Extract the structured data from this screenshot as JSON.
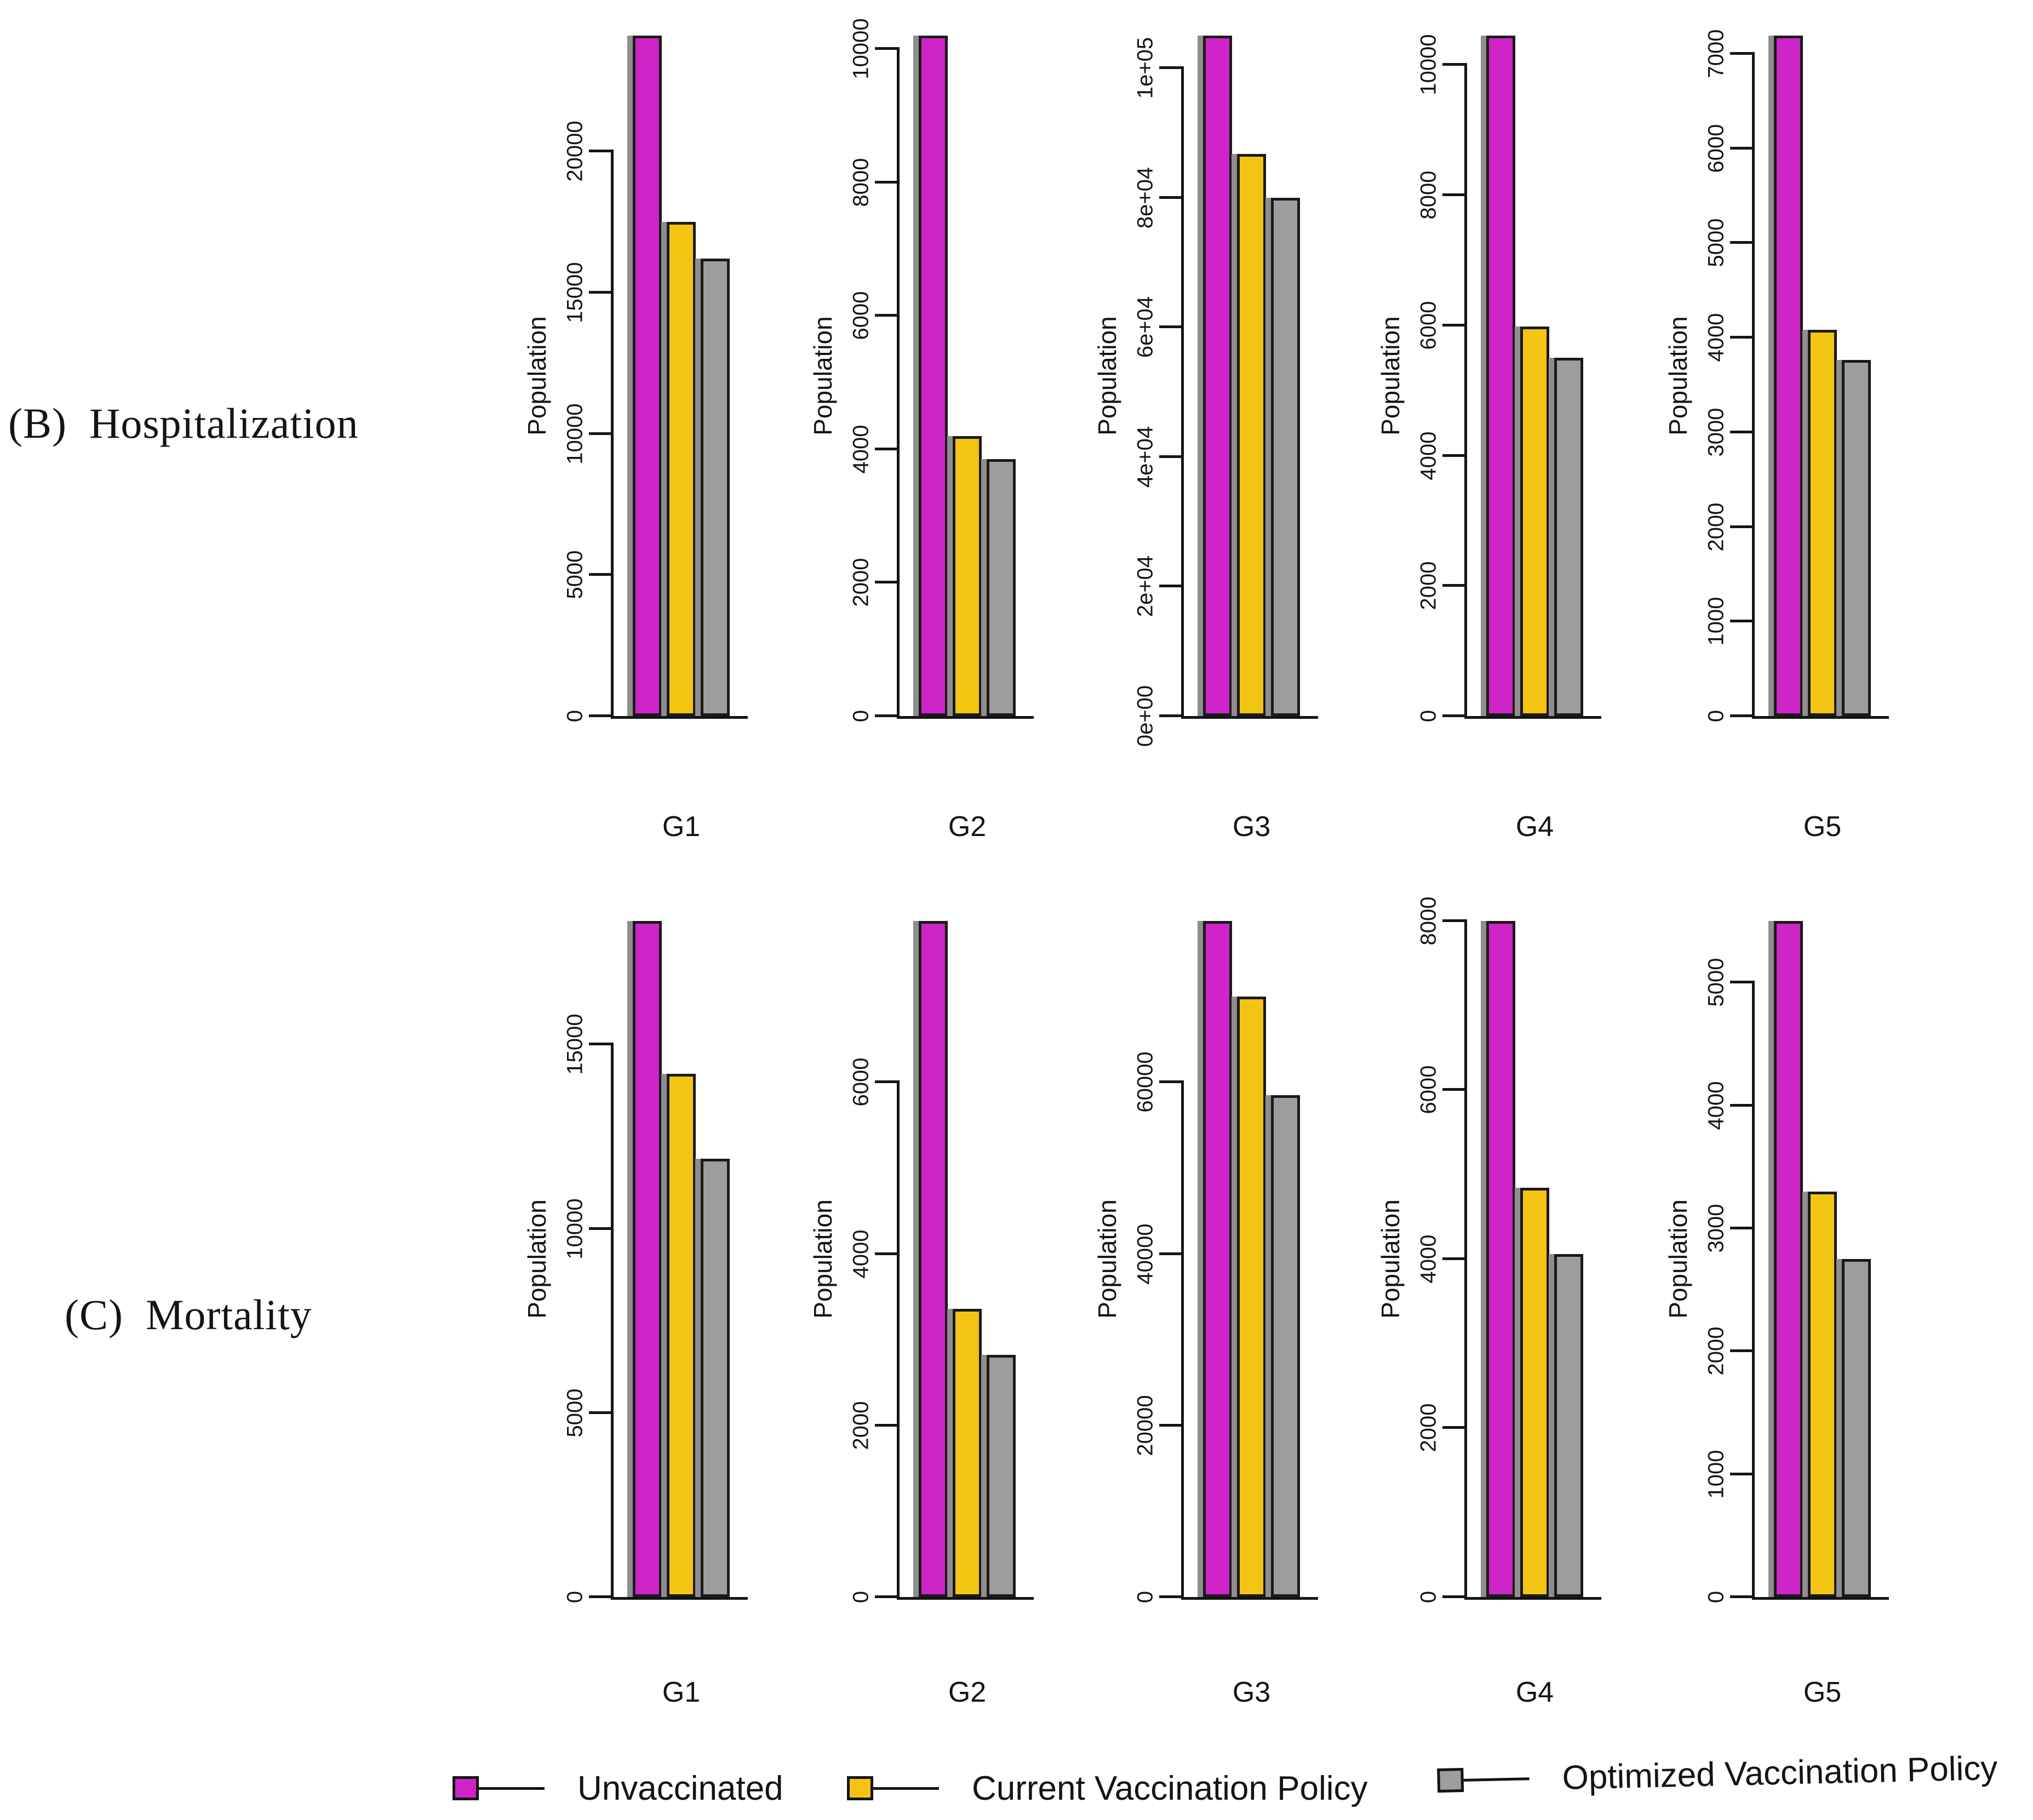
{
  "figure": {
    "row_labels": [
      {
        "prefix": "(B)",
        "title": "Hospitalization"
      },
      {
        "prefix": "(C)",
        "title": "Mortality"
      }
    ],
    "y_axis_title": "Population",
    "colors": {
      "unvaccinated": "#CE24C8",
      "current_policy": "#F4C413",
      "optimized_policy": "#9D9D9D",
      "bar_border": "#1a1a1a",
      "bar_shadow": "#8e8e8e",
      "axis": "#141414"
    },
    "legend": {
      "items": [
        {
          "label": "Unvaccinated",
          "color_key": "unvaccinated"
        },
        {
          "label": "Current Vaccination Policy",
          "color_key": "current_policy"
        },
        {
          "label": "Optimized Vaccination Policy",
          "color_key": "optimized_policy"
        }
      ]
    }
  },
  "chart_data": [
    {
      "type": "bar",
      "row": "B",
      "row_title": "Hospitalization",
      "category": "G1",
      "ylabel": "Population",
      "series": [
        "Unvaccinated",
        "Current Vaccination Policy",
        "Optimized Vaccination Policy"
      ],
      "values": [
        24100,
        17500,
        16200
      ],
      "first_bar_clipped_at_top": true,
      "ylim": [
        0,
        24100
      ],
      "yticks": [
        {
          "value": 0,
          "label": "0"
        },
        {
          "value": 5000,
          "label": "5000"
        },
        {
          "value": 10000,
          "label": "10000"
        },
        {
          "value": 15000,
          "label": "15000"
        },
        {
          "value": 20000,
          "label": "20000"
        }
      ]
    },
    {
      "type": "bar",
      "row": "B",
      "row_title": "Hospitalization",
      "category": "G2",
      "ylabel": "Population",
      "series": [
        "Unvaccinated",
        "Current Vaccination Policy",
        "Optimized Vaccination Policy"
      ],
      "values": [
        10200,
        4200,
        3850
      ],
      "first_bar_clipped_at_top": true,
      "ylim": [
        0,
        10200
      ],
      "yticks": [
        {
          "value": 0,
          "label": "0"
        },
        {
          "value": 2000,
          "label": "2000"
        },
        {
          "value": 4000,
          "label": "4000"
        },
        {
          "value": 6000,
          "label": "6000"
        },
        {
          "value": 8000,
          "label": "8000"
        },
        {
          "value": 10000,
          "label": "10000"
        }
      ]
    },
    {
      "type": "bar",
      "row": "B",
      "row_title": "Hospitalization",
      "category": "G3",
      "ylabel": "Population",
      "series": [
        "Unvaccinated",
        "Current Vaccination Policy",
        "Optimized Vaccination Policy"
      ],
      "values": [
        105000,
        86700,
        80000
      ],
      "first_bar_clipped_at_top": true,
      "ylim": [
        0,
        105000
      ],
      "yticks": [
        {
          "value": 0,
          "label": "0e+00"
        },
        {
          "value": 20000,
          "label": "2e+04"
        },
        {
          "value": 40000,
          "label": "4e+04"
        },
        {
          "value": 60000,
          "label": "6e+04"
        },
        {
          "value": 80000,
          "label": "8e+04"
        },
        {
          "value": 100000,
          "label": "1e+05"
        }
      ]
    },
    {
      "type": "bar",
      "row": "B",
      "row_title": "Hospitalization",
      "category": "G4",
      "ylabel": "Population",
      "series": [
        "Unvaccinated",
        "Current Vaccination Policy",
        "Optimized Vaccination Policy"
      ],
      "values": [
        10450,
        5980,
        5500
      ],
      "first_bar_clipped_at_top": true,
      "ylim": [
        0,
        10450
      ],
      "yticks": [
        {
          "value": 0,
          "label": "0"
        },
        {
          "value": 2000,
          "label": "2000"
        },
        {
          "value": 4000,
          "label": "4000"
        },
        {
          "value": 6000,
          "label": "6000"
        },
        {
          "value": 8000,
          "label": "8000"
        },
        {
          "value": 10000,
          "label": "10000"
        }
      ]
    },
    {
      "type": "bar",
      "row": "B",
      "row_title": "Hospitalization",
      "category": "G5",
      "ylabel": "Population",
      "series": [
        "Unvaccinated",
        "Current Vaccination Policy",
        "Optimized Vaccination Policy"
      ],
      "values": [
        7190,
        4080,
        3760
      ],
      "first_bar_clipped_at_top": true,
      "ylim": [
        0,
        7190
      ],
      "yticks": [
        {
          "value": 0,
          "label": "0"
        },
        {
          "value": 1000,
          "label": "1000"
        },
        {
          "value": 2000,
          "label": "2000"
        },
        {
          "value": 3000,
          "label": "3000"
        },
        {
          "value": 4000,
          "label": "4000"
        },
        {
          "value": 5000,
          "label": "5000"
        },
        {
          "value": 6000,
          "label": "6000"
        },
        {
          "value": 7000,
          "label": "7000"
        }
      ]
    },
    {
      "type": "bar",
      "row": "C",
      "row_title": "Mortality",
      "category": "G1",
      "ylabel": "Population",
      "series": [
        "Unvaccinated",
        "Current Vaccination Policy",
        "Optimized Vaccination Policy"
      ],
      "values": [
        18350,
        14200,
        11900
      ],
      "first_bar_clipped_at_top": true,
      "ylim": [
        0,
        18350
      ],
      "yticks": [
        {
          "value": 0,
          "label": "0"
        },
        {
          "value": 5000,
          "label": "5000"
        },
        {
          "value": 10000,
          "label": "10000"
        },
        {
          "value": 15000,
          "label": "15000"
        }
      ]
    },
    {
      "type": "bar",
      "row": "C",
      "row_title": "Mortality",
      "category": "G2",
      "ylabel": "Population",
      "series": [
        "Unvaccinated",
        "Current Vaccination Policy",
        "Optimized Vaccination Policy"
      ],
      "values": [
        7880,
        3360,
        2820
      ],
      "first_bar_clipped_at_top": true,
      "ylim": [
        0,
        7880
      ],
      "yticks": [
        {
          "value": 0,
          "label": "0"
        },
        {
          "value": 2000,
          "label": "2000"
        },
        {
          "value": 4000,
          "label": "4000"
        },
        {
          "value": 6000,
          "label": "6000"
        }
      ]
    },
    {
      "type": "bar",
      "row": "C",
      "row_title": "Mortality",
      "category": "G3",
      "ylabel": "Population",
      "series": [
        "Unvaccinated",
        "Current Vaccination Policy",
        "Optimized Vaccination Policy"
      ],
      "values": [
        78800,
        70000,
        58500
      ],
      "first_bar_clipped_at_top": true,
      "ylim": [
        0,
        78800
      ],
      "yticks": [
        {
          "value": 0,
          "label": "0"
        },
        {
          "value": 20000,
          "label": "20000"
        },
        {
          "value": 40000,
          "label": "40000"
        },
        {
          "value": 60000,
          "label": "60000"
        }
      ]
    },
    {
      "type": "bar",
      "row": "C",
      "row_title": "Mortality",
      "category": "G4",
      "ylabel": "Population",
      "series": [
        "Unvaccinated",
        "Current Vaccination Policy",
        "Optimized Vaccination Policy"
      ],
      "values": [
        8000,
        4840,
        4060
      ],
      "first_bar_clipped_at_top": true,
      "ylim": [
        0,
        8000
      ],
      "yticks": [
        {
          "value": 0,
          "label": "0"
        },
        {
          "value": 2000,
          "label": "2000"
        },
        {
          "value": 4000,
          "label": "4000"
        },
        {
          "value": 6000,
          "label": "6000"
        },
        {
          "value": 8000,
          "label": "8000"
        }
      ]
    },
    {
      "type": "bar",
      "row": "C",
      "row_title": "Mortality",
      "category": "G5",
      "ylabel": "Population",
      "series": [
        "Unvaccinated",
        "Current Vaccination Policy",
        "Optimized Vaccination Policy"
      ],
      "values": [
        5500,
        3300,
        2750
      ],
      "first_bar_clipped_at_top": true,
      "ylim": [
        0,
        5500
      ],
      "yticks": [
        {
          "value": 0,
          "label": "0"
        },
        {
          "value": 1000,
          "label": "1000"
        },
        {
          "value": 2000,
          "label": "2000"
        },
        {
          "value": 3000,
          "label": "3000"
        },
        {
          "value": 4000,
          "label": "4000"
        },
        {
          "value": 5000,
          "label": "5000"
        }
      ]
    }
  ]
}
